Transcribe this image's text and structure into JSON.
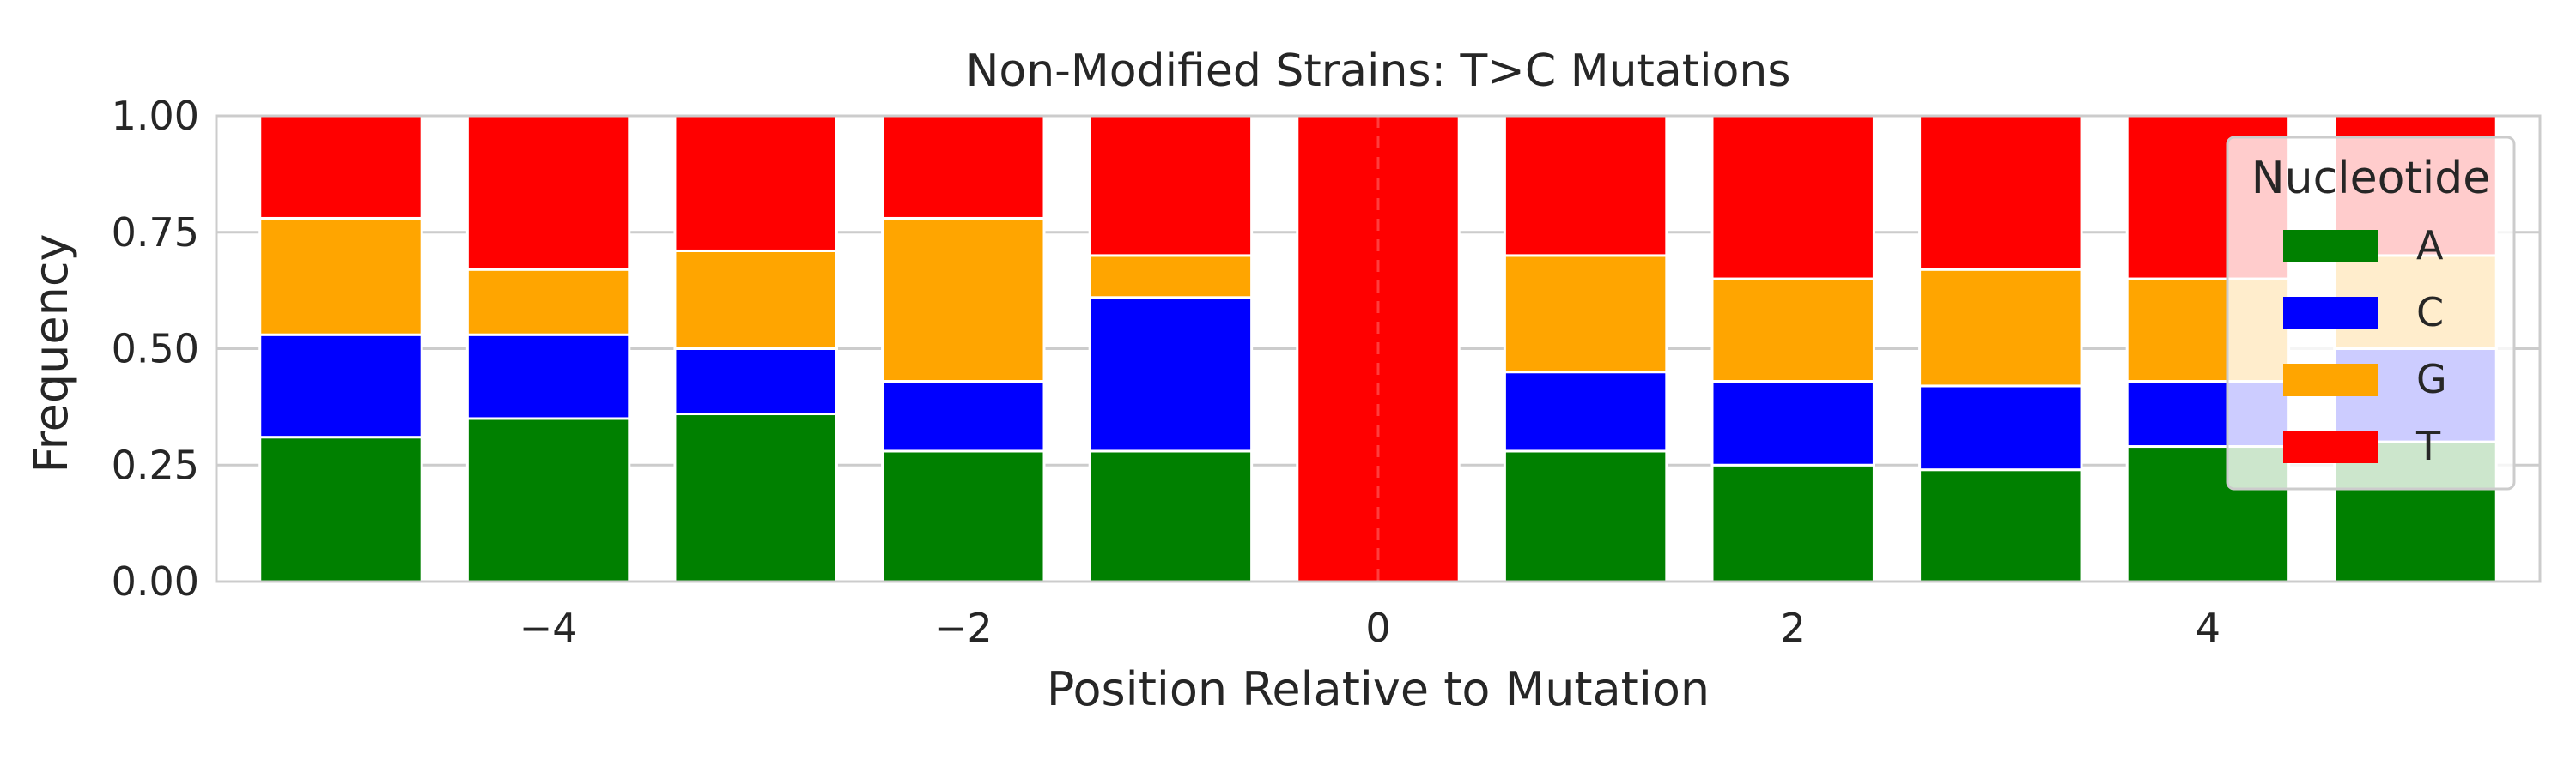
{
  "chart_data": {
    "type": "bar",
    "stacked": true,
    "title": "Non-Modified Strains: T>C Mutations",
    "xlabel": "Position Relative to Mutation",
    "ylabel": "Frequency",
    "x": [
      -5,
      -4,
      -3,
      -2,
      -1,
      0,
      1,
      2,
      3,
      4,
      5
    ],
    "ylim": [
      0,
      1
    ],
    "xlim": [
      -5.6,
      5.6
    ],
    "yticks": [
      "0.00",
      "0.25",
      "0.50",
      "0.75",
      "1.00"
    ],
    "xticks": [
      {
        "value": -4,
        "label": "−4"
      },
      {
        "value": -2,
        "label": "−2"
      },
      {
        "value": 0,
        "label": "0"
      },
      {
        "value": 2,
        "label": "2"
      },
      {
        "value": 4,
        "label": "4"
      }
    ],
    "grid": true,
    "legend": {
      "title": "Nucleotide",
      "placement": "upper-right"
    },
    "series": [
      {
        "name": "A",
        "color": "#008000",
        "values": [
          0.31,
          0.35,
          0.36,
          0.28,
          0.28,
          0.0,
          0.28,
          0.25,
          0.24,
          0.29,
          0.3
        ]
      },
      {
        "name": "C",
        "color": "#0000ff",
        "values": [
          0.22,
          0.18,
          0.14,
          0.15,
          0.33,
          0.0,
          0.17,
          0.18,
          0.18,
          0.14,
          0.2
        ]
      },
      {
        "name": "G",
        "color": "#ffa500",
        "values": [
          0.25,
          0.14,
          0.21,
          0.35,
          0.09,
          0.0,
          0.25,
          0.22,
          0.25,
          0.22,
          0.2
        ]
      },
      {
        "name": "T",
        "color": "#ff0000",
        "values": [
          0.22,
          0.33,
          0.29,
          0.22,
          0.3,
          1.0,
          0.3,
          0.35,
          0.33,
          0.35,
          0.3
        ]
      }
    ],
    "annotations": [
      {
        "type": "vline",
        "x": 0,
        "style": "dashed"
      }
    ]
  }
}
